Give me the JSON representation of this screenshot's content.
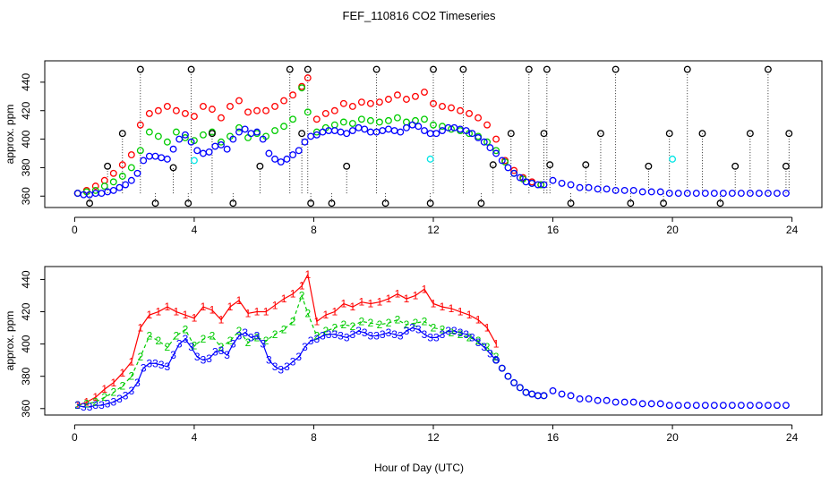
{
  "title": "FEF_110816  CO2 Timeseries",
  "xlabel": "Hour of Day (UTC)",
  "colors": {
    "red": "#ff0000",
    "green": "#00cc00",
    "blue": "#0000ff",
    "cyan": "#00e5e5",
    "black": "#000000"
  },
  "chart_data": [
    {
      "type": "scatter",
      "panel": "top",
      "ylabel": "approx. ppm",
      "xlim": [
        0,
        24
      ],
      "ylim": [
        352,
        455
      ],
      "xticks": [
        "0",
        "4",
        "8",
        "12",
        "16",
        "20",
        "24"
      ],
      "yticks": [
        "360",
        "380",
        "400",
        "420",
        "440"
      ],
      "grid": false,
      "series": [
        {
          "color": "red",
          "x": [
            0.1,
            0.4,
            0.7,
            1.0,
            1.3,
            1.6,
            1.9,
            2.2,
            2.5,
            2.8,
            3.1,
            3.4,
            3.7,
            4.0,
            4.3,
            4.6,
            4.9,
            5.2,
            5.5,
            5.8,
            6.1,
            6.4,
            6.7,
            7.0,
            7.3,
            7.6,
            7.8,
            8.1,
            8.4,
            8.7,
            9.0,
            9.3,
            9.6,
            9.9,
            10.2,
            10.5,
            10.8,
            11.1,
            11.4,
            11.7,
            12.0,
            12.3,
            12.6,
            12.9,
            13.2,
            13.5,
            13.8,
            14.1,
            14.4,
            14.7,
            15.0,
            15.3,
            15.6
          ],
          "y": [
            362,
            364,
            367,
            371,
            376,
            382,
            389,
            410,
            418,
            420,
            423,
            420,
            418,
            416,
            423,
            421,
            415,
            423,
            427,
            419,
            420,
            420,
            423,
            427,
            431,
            437,
            443,
            414,
            418,
            420,
            425,
            423,
            426,
            425,
            426,
            428,
            431,
            428,
            430,
            433,
            425,
            423,
            422,
            420,
            418,
            415,
            410,
            400,
            385,
            378,
            373,
            370,
            368
          ]
        },
        {
          "color": "green",
          "x": [
            0.1,
            0.4,
            0.7,
            1.0,
            1.3,
            1.6,
            1.9,
            2.2,
            2.5,
            2.8,
            3.1,
            3.4,
            3.7,
            4.0,
            4.3,
            4.6,
            4.9,
            5.2,
            5.5,
            5.8,
            6.1,
            6.4,
            6.7,
            7.0,
            7.3,
            7.6,
            7.8,
            8.1,
            8.4,
            8.7,
            9.0,
            9.3,
            9.6,
            9.9,
            10.2,
            10.5,
            10.8,
            11.1,
            11.4,
            11.7,
            12.0,
            12.3,
            12.6,
            12.9,
            13.2,
            13.5,
            13.8,
            14.1,
            14.4,
            14.7,
            15.0,
            15.3,
            15.6
          ],
          "y": [
            362,
            363,
            364,
            367,
            370,
            374,
            380,
            392,
            405,
            402,
            398,
            405,
            401,
            399,
            403,
            405,
            398,
            402,
            408,
            401,
            404,
            402,
            406,
            409,
            414,
            436,
            419,
            405,
            408,
            410,
            412,
            411,
            414,
            413,
            412,
            413,
            415,
            412,
            413,
            414,
            410,
            409,
            407,
            406,
            404,
            402,
            398,
            392,
            384,
            376,
            372,
            369,
            368
          ]
        },
        {
          "color": "blue",
          "x": [
            0.1,
            0.3,
            0.5,
            0.7,
            0.9,
            1.1,
            1.3,
            1.5,
            1.7,
            1.9,
            2.1,
            2.3,
            2.5,
            2.7,
            2.9,
            3.1,
            3.3,
            3.5,
            3.7,
            3.9,
            4.1,
            4.3,
            4.5,
            4.7,
            4.9,
            5.1,
            5.3,
            5.5,
            5.7,
            5.9,
            6.1,
            6.3,
            6.5,
            6.7,
            6.9,
            7.1,
            7.3,
            7.5,
            7.7,
            7.9,
            8.1,
            8.3,
            8.5,
            8.7,
            8.9,
            9.1,
            9.3,
            9.5,
            9.7,
            9.9,
            10.1,
            10.3,
            10.5,
            10.7,
            10.9,
            11.1,
            11.3,
            11.5,
            11.7,
            11.9,
            12.1,
            12.3,
            12.5,
            12.7,
            12.9,
            13.1,
            13.3,
            13.5,
            13.7,
            13.9,
            14.1,
            14.3,
            14.5,
            14.7,
            14.9,
            15.1,
            15.3,
            15.5,
            15.7,
            16.0,
            16.3,
            16.6,
            16.9,
            17.2,
            17.5,
            17.8,
            18.1,
            18.4,
            18.7,
            19.0,
            19.3,
            19.6,
            19.9,
            20.2,
            20.5,
            20.8,
            21.1,
            21.4,
            21.7,
            22.0,
            22.3,
            22.6,
            22.9,
            23.2,
            23.5,
            23.8
          ],
          "y": [
            362,
            361,
            361,
            362,
            362,
            363,
            364,
            366,
            368,
            371,
            376,
            385,
            388,
            388,
            387,
            386,
            393,
            400,
            403,
            398,
            392,
            390,
            391,
            395,
            396,
            393,
            400,
            405,
            407,
            404,
            405,
            400,
            390,
            386,
            384,
            386,
            389,
            392,
            398,
            402,
            403,
            405,
            406,
            406,
            405,
            404,
            406,
            408,
            407,
            405,
            405,
            406,
            407,
            406,
            405,
            408,
            410,
            409,
            406,
            404,
            404,
            406,
            408,
            408,
            407,
            406,
            404,
            401,
            398,
            394,
            390,
            385,
            380,
            376,
            373,
            370,
            369,
            368,
            368,
            371,
            369,
            368,
            366,
            366,
            365,
            365,
            364,
            364,
            364,
            363,
            363,
            363,
            362,
            362,
            362,
            362,
            362,
            362,
            362,
            362,
            362,
            362,
            362,
            362,
            362,
            362
          ]
        },
        {
          "color": "cyan",
          "x": [
            4.0,
            11.9,
            20.0
          ],
          "y": [
            385,
            386,
            386
          ]
        },
        {
          "color": "black",
          "x": [
            0.5,
            1.1,
            1.6,
            2.2,
            2.7,
            3.3,
            3.8,
            3.9,
            4.6,
            5.3,
            6.2,
            7.2,
            7.6,
            7.8,
            7.9,
            8.6,
            9.1,
            10.1,
            10.4,
            11.9,
            12.0,
            13.0,
            13.6,
            14.0,
            14.6,
            15.2,
            15.7,
            15.8,
            15.9,
            16.6,
            17.1,
            17.6,
            18.1,
            18.6,
            19.2,
            19.7,
            19.9,
            20.5,
            21.0,
            21.6,
            22.1,
            22.6,
            23.2,
            23.8,
            23.9
          ],
          "y": [
            355,
            381,
            404,
            449,
            355,
            380,
            355,
            449,
            404,
            355,
            381,
            449,
            404,
            449,
            355,
            355,
            381,
            449,
            355,
            355,
            449,
            449,
            355,
            382,
            404,
            449,
            404,
            449,
            382,
            355,
            382,
            404,
            449,
            355,
            381,
            355,
            404,
            449,
            404,
            355,
            381,
            404,
            449,
            381,
            404
          ]
        }
      ]
    },
    {
      "type": "line",
      "panel": "bottom",
      "ylabel": "approx. ppm",
      "xlim": [
        0,
        24
      ],
      "ylim": [
        356,
        448
      ],
      "xticks": [
        "0",
        "4",
        "8",
        "12",
        "16",
        "20",
        "24"
      ],
      "yticks": [
        "360",
        "380",
        "400",
        "420",
        "440"
      ],
      "grid": false,
      "series": [
        {
          "color": "red",
          "marker": "1",
          "x": [
            0.1,
            0.4,
            0.7,
            1.0,
            1.3,
            1.6,
            1.9,
            2.2,
            2.5,
            2.8,
            3.1,
            3.4,
            3.7,
            4.0,
            4.3,
            4.6,
            4.9,
            5.2,
            5.5,
            5.8,
            6.1,
            6.4,
            6.7,
            7.0,
            7.3,
            7.6,
            7.8,
            8.1,
            8.4,
            8.7,
            9.0,
            9.3,
            9.6,
            9.9,
            10.2,
            10.5,
            10.8,
            11.1,
            11.4,
            11.7,
            12.0,
            12.3,
            12.6,
            12.9,
            13.2,
            13.5,
            13.8,
            14.1
          ],
          "y": [
            362,
            364,
            367,
            372,
            376,
            382,
            389,
            410,
            418,
            420,
            423,
            420,
            418,
            416,
            423,
            421,
            415,
            423,
            427,
            419,
            420,
            420,
            424,
            428,
            431,
            436,
            443,
            414,
            418,
            420,
            425,
            423,
            426,
            425,
            426,
            428,
            431,
            428,
            430,
            434,
            425,
            423,
            422,
            420,
            418,
            415,
            410,
            400
          ]
        },
        {
          "color": "green",
          "marker": "2",
          "x": [
            0.1,
            0.4,
            0.7,
            1.0,
            1.3,
            1.6,
            1.9,
            2.2,
            2.5,
            2.8,
            3.1,
            3.4,
            3.7,
            4.0,
            4.3,
            4.6,
            4.9,
            5.2,
            5.5,
            5.8,
            6.1,
            6.4,
            6.7,
            7.0,
            7.3,
            7.6,
            7.8,
            8.1,
            8.4,
            8.7,
            9.0,
            9.3,
            9.6,
            9.9,
            10.2,
            10.5,
            10.8,
            11.1,
            11.4,
            11.7,
            12.0,
            12.3,
            12.6,
            12.9,
            13.2,
            13.5,
            13.8,
            14.1
          ],
          "y": [
            362,
            363,
            364,
            367,
            370,
            374,
            380,
            392,
            405,
            402,
            398,
            405,
            409,
            399,
            403,
            405,
            398,
            402,
            408,
            401,
            404,
            402,
            406,
            409,
            414,
            430,
            419,
            405,
            408,
            410,
            412,
            411,
            414,
            413,
            412,
            413,
            415,
            412,
            413,
            414,
            410,
            409,
            407,
            406,
            404,
            402,
            398,
            392
          ]
        },
        {
          "color": "blue",
          "marker": "3",
          "x": [
            0.1,
            0.3,
            0.5,
            0.7,
            0.9,
            1.1,
            1.3,
            1.5,
            1.7,
            1.9,
            2.1,
            2.3,
            2.5,
            2.7,
            2.9,
            3.1,
            3.3,
            3.5,
            3.7,
            3.9,
            4.1,
            4.3,
            4.5,
            4.7,
            4.9,
            5.1,
            5.3,
            5.5,
            5.7,
            5.9,
            6.1,
            6.3,
            6.5,
            6.7,
            6.9,
            7.1,
            7.3,
            7.5,
            7.7,
            7.9,
            8.1,
            8.3,
            8.5,
            8.7,
            8.9,
            9.1,
            9.3,
            9.5,
            9.7,
            9.9,
            10.1,
            10.3,
            10.5,
            10.7,
            10.9,
            11.1,
            11.3,
            11.5,
            11.7,
            11.9,
            12.1,
            12.3,
            12.5,
            12.7,
            12.9,
            13.1,
            13.3,
            13.5,
            13.7,
            13.9,
            14.1
          ],
          "y": [
            362,
            361,
            361,
            362,
            362,
            363,
            364,
            366,
            368,
            371,
            376,
            385,
            388,
            388,
            387,
            386,
            393,
            400,
            403,
            398,
            392,
            390,
            391,
            395,
            396,
            393,
            400,
            405,
            407,
            404,
            405,
            400,
            390,
            386,
            384,
            386,
            389,
            392,
            398,
            402,
            403,
            405,
            406,
            406,
            405,
            404,
            406,
            408,
            407,
            405,
            405,
            406,
            407,
            406,
            405,
            408,
            410,
            409,
            406,
            404,
            404,
            406,
            408,
            408,
            407,
            406,
            404,
            401,
            398,
            394,
            390
          ]
        },
        {
          "color": "green",
          "marker": "o",
          "x": [
            14.1,
            14.3,
            14.5,
            14.7,
            14.9,
            15.1,
            15.3,
            15.5,
            15.7
          ],
          "y": [
            390,
            385,
            380,
            376,
            373,
            370,
            369,
            368,
            368
          ]
        },
        {
          "color": "blue",
          "marker": "o",
          "x": [
            14.1,
            14.3,
            14.5,
            14.7,
            14.9,
            15.1,
            15.3,
            15.5,
            15.7,
            16.0,
            16.3,
            16.6,
            16.9,
            17.2,
            17.5,
            17.8,
            18.1,
            18.4,
            18.7,
            19.0,
            19.3,
            19.6,
            19.9,
            20.2,
            20.5,
            20.8,
            21.1,
            21.4,
            21.7,
            22.0,
            22.3,
            22.6,
            22.9,
            23.2,
            23.5,
            23.8
          ],
          "y": [
            390,
            385,
            380,
            376,
            373,
            370,
            369,
            368,
            368,
            371,
            369,
            368,
            366,
            366,
            365,
            365,
            364,
            364,
            364,
            363,
            363,
            363,
            362,
            362,
            362,
            362,
            362,
            362,
            362,
            362,
            362,
            362,
            362,
            362,
            362,
            362
          ]
        }
      ]
    }
  ]
}
